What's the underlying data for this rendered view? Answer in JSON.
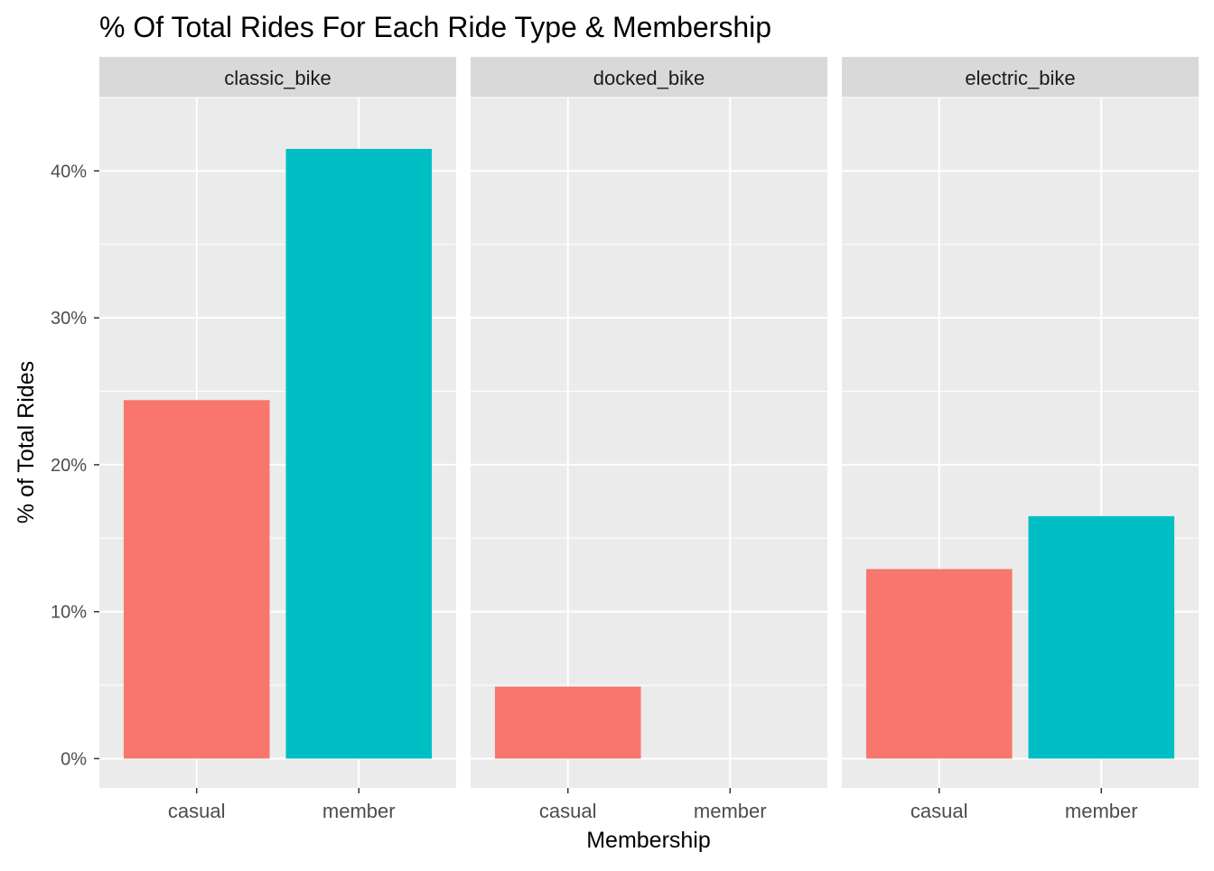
{
  "chart_data": {
    "type": "bar",
    "title": "% Of Total Rides For Each Ride Type & Membership",
    "xlabel": "Membership",
    "ylabel": "% of Total Rides",
    "ylim": [
      -2,
      45
    ],
    "y_ticks": [
      0,
      10,
      20,
      30,
      40
    ],
    "y_tick_labels": [
      "0%",
      "10%",
      "20%",
      "30%",
      "40%"
    ],
    "facet_variable": "rideable_type",
    "legend": "none",
    "grid": true,
    "categories": [
      "casual",
      "member"
    ],
    "colors": {
      "casual": "#F8766D",
      "member": "#00BFC4"
    },
    "facets": [
      {
        "name": "classic_bike",
        "values": [
          24.4,
          41.5
        ]
      },
      {
        "name": "docked_bike",
        "values": [
          4.9,
          0
        ]
      },
      {
        "name": "electric_bike",
        "values": [
          12.9,
          16.5
        ]
      }
    ]
  },
  "colors": {
    "panel_background": "#EBEBEB",
    "grid_line": "#FFFFFF",
    "strip_background": "#D9D9D9",
    "axis_text": "#4D4D4D",
    "title_text": "#000000"
  }
}
